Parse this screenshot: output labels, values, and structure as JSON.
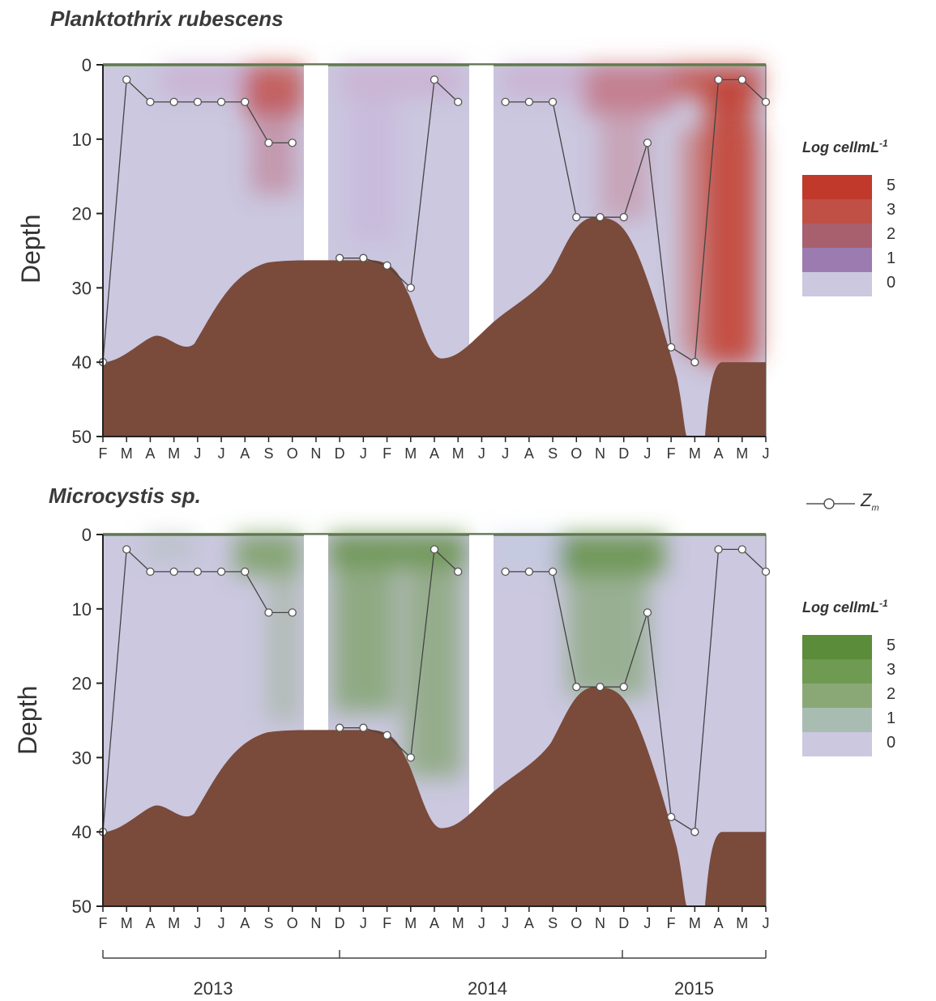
{
  "chart_data": [
    {
      "type": "heatmap",
      "title": "Planktothrix rubescens",
      "ylabel": "Depth",
      "ylim": [
        0,
        50
      ],
      "y_inverted": true,
      "yticks": [
        "0",
        "10",
        "20",
        "30",
        "40",
        "50"
      ],
      "x_tick_labels": [
        "F",
        "M",
        "A",
        "M",
        "J",
        "J",
        "A",
        "S",
        "O",
        "N",
        "D",
        "J",
        "F",
        "M",
        "A",
        "M",
        "J",
        "J",
        "A",
        "S",
        "O",
        "N",
        "D",
        "J",
        "F",
        "M",
        "A",
        "M",
        "J"
      ],
      "colorscale": {
        "title": "Log cellmL",
        "title_sup": "-1",
        "levels": [
          {
            "label": "5",
            "color": "#c0392b"
          },
          {
            "label": "3",
            "color": "#c05046"
          },
          {
            "label": "2",
            "color": "#a8606e"
          },
          {
            "label": "1",
            "color": "#9b7bb0"
          },
          {
            "label": "0",
            "color": "#cbc8e0"
          }
        ]
      },
      "series": [
        {
          "name": "Z_m",
          "x_index": [
            0,
            1,
            2,
            3,
            4,
            5,
            6,
            7,
            8,
            9,
            10,
            11,
            12,
            13,
            14,
            15,
            17,
            18,
            19,
            20,
            21,
            22,
            23,
            24,
            25,
            26,
            27,
            28
          ],
          "y": [
            40,
            2,
            5,
            5,
            5,
            5,
            5,
            10.5,
            10.5,
            null,
            26,
            26,
            27,
            30,
            2,
            5,
            5,
            5,
            5,
            20.5,
            20.5,
            20.5,
            10.5,
            38,
            40,
            2,
            2,
            5
          ]
        }
      ],
      "bottom_profile_depth_m": [
        40,
        39.5,
        36.5,
        38,
        33,
        28,
        26.3,
        26.3,
        26.3,
        26.5,
        28,
        35,
        39.5,
        38,
        34,
        31,
        25,
        20.5,
        21,
        27,
        50,
        40,
        40
      ]
    },
    {
      "type": "heatmap",
      "title": "Microcystis sp.",
      "ylabel": "Depth",
      "ylim": [
        0,
        50
      ],
      "y_inverted": true,
      "yticks": [
        "0",
        "10",
        "20",
        "30",
        "40",
        "50"
      ],
      "x_tick_labels": [
        "F",
        "M",
        "A",
        "M",
        "J",
        "J",
        "A",
        "S",
        "O",
        "N",
        "D",
        "J",
        "F",
        "M",
        "A",
        "M",
        "J",
        "J",
        "A",
        "S",
        "O",
        "N",
        "D",
        "J",
        "F",
        "M",
        "A",
        "M",
        "J"
      ],
      "x_group_labels": [
        "2013",
        "2014",
        "2015"
      ],
      "colorscale": {
        "title": "Log cellmL",
        "title_sup": "-1",
        "levels": [
          {
            "label": "5",
            "color": "#5b8c3a"
          },
          {
            "label": "3",
            "color": "#6f9a52"
          },
          {
            "label": "2",
            "color": "#8aa876"
          },
          {
            "label": "1",
            "color": "#a9bcb1"
          },
          {
            "label": "0",
            "color": "#cbc8e0"
          }
        ]
      },
      "series": [
        {
          "name": "Z_m",
          "x_index": [
            0,
            1,
            2,
            3,
            4,
            5,
            6,
            7,
            8,
            10,
            11,
            12,
            13,
            14,
            15,
            17,
            18,
            19,
            20,
            21,
            22,
            23,
            24,
            25,
            26,
            27,
            28
          ],
          "y": [
            40,
            2,
            5,
            5,
            5,
            5,
            5,
            10.5,
            10.5,
            26,
            26,
            27,
            30,
            2,
            5,
            5,
            5,
            5,
            20.5,
            20.5,
            20.5,
            10.5,
            38,
            40,
            2,
            2,
            5
          ]
        }
      ]
    }
  ],
  "legend_key": {
    "label": "Z",
    "sub": "m"
  }
}
